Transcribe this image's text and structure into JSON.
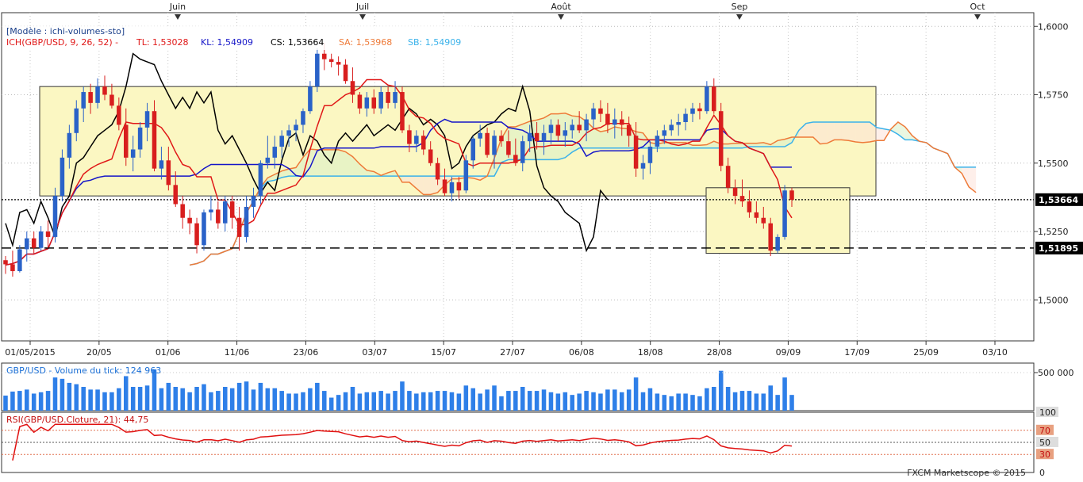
{
  "header": {
    "model_label": "[Modèle : ichi-volumes-sto]",
    "ich_label": "ICH(GBP/USD, 9, 26, 52) -",
    "tl_label": "TL: 1,53028",
    "kl_label": "KL: 1,54909",
    "cs_label": "CS: 1,53664",
    "sa_label": "SA: 1,53968",
    "sb_label": "SB: 1,54909"
  },
  "colors": {
    "up_candle": "#2a62c8",
    "down_candle": "#d81e1e",
    "tenkan": "#e01818",
    "kijun": "#1515c8",
    "chikou": "#000000",
    "senkou_a": "#ee7a38",
    "senkou_b": "#3ab2ea",
    "rectangle_fill": "#fbf7c2",
    "volume_bar": "#2e7fe8",
    "rsi_line": "#e01010"
  },
  "chart_data": [
    {
      "type": "candlestick",
      "x_ticks": [
        "01/05/2015",
        "20/05",
        "01/06",
        "11/06",
        "23/06",
        "03/07",
        "15/07",
        "27/07",
        "06/08",
        "18/08",
        "28/08",
        "09/09",
        "17/09",
        "25/09",
        "03/10"
      ],
      "months": [
        "Juin",
        "Juil",
        "Août",
        "Sep",
        "Oct"
      ],
      "y_ticks": [
        "1,6000",
        "1,5750",
        "1,5500",
        "1,5250",
        "1,5000"
      ],
      "ylim": [
        1.485,
        1.605
      ],
      "current_price_label": "1,53664",
      "current_price": 1.53664,
      "support_label": "1,51895",
      "support": 1.51895,
      "candles": [
        [
          1.5145,
          1.516,
          1.5095,
          1.513
        ],
        [
          1.513,
          1.518,
          1.5085,
          1.5105
        ],
        [
          1.5105,
          1.52,
          1.51,
          1.5185
        ],
        [
          1.5185,
          1.525,
          1.514,
          1.5225
        ],
        [
          1.5225,
          1.525,
          1.517,
          1.519
        ],
        [
          1.519,
          1.527,
          1.518,
          1.525
        ],
        [
          1.525,
          1.529,
          1.519,
          1.523
        ],
        [
          1.523,
          1.541,
          1.521,
          1.538
        ],
        [
          1.538,
          1.555,
          1.536,
          1.552
        ],
        [
          1.552,
          1.564,
          1.548,
          1.561
        ],
        [
          1.561,
          1.573,
          1.558,
          1.57
        ],
        [
          1.57,
          1.578,
          1.565,
          1.576
        ],
        [
          1.576,
          1.579,
          1.568,
          1.572
        ],
        [
          1.572,
          1.581,
          1.57,
          1.578
        ],
        [
          1.578,
          1.582,
          1.573,
          1.575
        ],
        [
          1.575,
          1.579,
          1.57,
          1.571
        ],
        [
          1.571,
          1.574,
          1.562,
          1.564
        ],
        [
          1.564,
          1.57,
          1.549,
          1.552
        ],
        [
          1.552,
          1.56,
          1.547,
          1.555
        ],
        [
          1.555,
          1.565,
          1.552,
          1.563
        ],
        [
          1.563,
          1.572,
          1.558,
          1.569
        ],
        [
          1.569,
          1.573,
          1.547,
          1.548
        ],
        [
          1.548,
          1.556,
          1.544,
          1.551
        ],
        [
          1.551,
          1.556,
          1.54,
          1.542
        ],
        [
          1.542,
          1.547,
          1.534,
          1.535
        ],
        [
          1.535,
          1.538,
          1.526,
          1.53
        ],
        [
          1.53,
          1.533,
          1.524,
          1.528
        ],
        [
          1.528,
          1.53,
          1.517,
          1.52
        ],
        [
          1.52,
          1.533,
          1.518,
          1.532
        ],
        [
          1.532,
          1.538,
          1.529,
          1.533
        ],
        [
          1.533,
          1.536,
          1.526,
          1.528
        ],
        [
          1.528,
          1.538,
          1.525,
          1.536
        ],
        [
          1.536,
          1.538,
          1.526,
          1.53
        ],
        [
          1.53,
          1.534,
          1.518,
          1.523
        ],
        [
          1.523,
          1.538,
          1.521,
          1.534
        ],
        [
          1.534,
          1.541,
          1.53,
          1.538
        ],
        [
          1.538,
          1.551,
          1.535,
          1.55
        ],
        [
          1.55,
          1.56,
          1.548,
          1.552
        ],
        [
          1.552,
          1.56,
          1.548,
          1.556
        ],
        [
          1.556,
          1.562,
          1.552,
          1.56
        ],
        [
          1.56,
          1.564,
          1.556,
          1.562
        ],
        [
          1.562,
          1.566,
          1.558,
          1.564
        ],
        [
          1.564,
          1.57,
          1.561,
          1.569
        ],
        [
          1.569,
          1.58,
          1.568,
          1.578
        ],
        [
          1.578,
          1.592,
          1.576,
          1.59
        ],
        [
          1.59,
          1.594,
          1.584,
          1.588
        ],
        [
          1.588,
          1.59,
          1.585,
          1.587
        ],
        [
          1.587,
          1.589,
          1.582,
          1.586
        ],
        [
          1.586,
          1.588,
          1.579,
          1.58
        ],
        [
          1.58,
          1.585,
          1.572,
          1.575
        ],
        [
          1.575,
          1.576,
          1.568,
          1.57
        ],
        [
          1.57,
          1.576,
          1.567,
          1.574
        ],
        [
          1.574,
          1.577,
          1.568,
          1.57
        ],
        [
          1.57,
          1.578,
          1.568,
          1.576
        ],
        [
          1.576,
          1.578,
          1.57,
          1.572
        ],
        [
          1.572,
          1.58,
          1.57,
          1.576
        ],
        [
          1.576,
          1.578,
          1.561,
          1.562
        ],
        [
          1.562,
          1.564,
          1.554,
          1.557
        ],
        [
          1.557,
          1.562,
          1.554,
          1.56
        ],
        [
          1.56,
          1.562,
          1.553,
          1.555
        ],
        [
          1.555,
          1.558,
          1.549,
          1.55
        ],
        [
          1.55,
          1.552,
          1.542,
          1.544
        ],
        [
          1.544,
          1.548,
          1.538,
          1.539
        ],
        [
          1.539,
          1.545,
          1.536,
          1.543
        ],
        [
          1.543,
          1.545,
          1.537,
          1.54
        ],
        [
          1.54,
          1.553,
          1.539,
          1.551
        ],
        [
          1.551,
          1.56,
          1.548,
          1.559
        ],
        [
          1.559,
          1.564,
          1.556,
          1.561
        ],
        [
          1.561,
          1.563,
          1.552,
          1.553
        ],
        [
          1.553,
          1.562,
          1.548,
          1.56
        ],
        [
          1.56,
          1.562,
          1.556,
          1.558
        ],
        [
          1.558,
          1.562,
          1.552,
          1.553
        ],
        [
          1.553,
          1.559,
          1.549,
          1.55
        ],
        [
          1.55,
          1.56,
          1.547,
          1.558
        ],
        [
          1.558,
          1.564,
          1.554,
          1.561
        ],
        [
          1.561,
          1.565,
          1.555,
          1.558
        ],
        [
          1.558,
          1.564,
          1.553,
          1.561
        ],
        [
          1.561,
          1.566,
          1.557,
          1.564
        ],
        [
          1.564,
          1.566,
          1.558,
          1.56
        ],
        [
          1.56,
          1.565,
          1.556,
          1.562
        ],
        [
          1.562,
          1.566,
          1.559,
          1.564
        ],
        [
          1.564,
          1.569,
          1.561,
          1.562
        ],
        [
          1.562,
          1.568,
          1.558,
          1.566
        ],
        [
          1.566,
          1.572,
          1.563,
          1.57
        ],
        [
          1.57,
          1.573,
          1.565,
          1.568
        ],
        [
          1.568,
          1.572,
          1.561,
          1.564
        ],
        [
          1.564,
          1.57,
          1.559,
          1.566
        ],
        [
          1.566,
          1.569,
          1.56,
          1.564
        ],
        [
          1.564,
          1.567,
          1.556,
          1.56
        ],
        [
          1.56,
          1.565,
          1.545,
          1.548
        ],
        [
          1.548,
          1.553,
          1.544,
          1.55
        ],
        [
          1.55,
          1.558,
          1.546,
          1.556
        ],
        [
          1.556,
          1.562,
          1.554,
          1.56
        ],
        [
          1.56,
          1.564,
          1.557,
          1.562
        ],
        [
          1.562,
          1.566,
          1.56,
          1.564
        ],
        [
          1.564,
          1.568,
          1.56,
          1.565
        ],
        [
          1.565,
          1.57,
          1.562,
          1.568
        ],
        [
          1.568,
          1.572,
          1.565,
          1.57
        ],
        [
          1.57,
          1.572,
          1.566,
          1.569
        ],
        [
          1.569,
          1.58,
          1.568,
          1.578
        ],
        [
          1.578,
          1.581,
          1.568,
          1.569
        ],
        [
          1.569,
          1.572,
          1.547,
          1.549
        ],
        [
          1.549,
          1.552,
          1.539,
          1.541
        ],
        [
          1.541,
          1.544,
          1.535,
          1.538
        ],
        [
          1.538,
          1.544,
          1.534,
          1.536
        ],
        [
          1.536,
          1.54,
          1.53,
          1.532
        ],
        [
          1.532,
          1.536,
          1.528,
          1.53
        ],
        [
          1.53,
          1.534,
          1.526,
          1.528
        ],
        [
          1.528,
          1.53,
          1.516,
          1.518
        ],
        [
          1.518,
          1.524,
          1.517,
          1.523
        ],
        [
          1.523,
          1.542,
          1.522,
          1.54
        ],
        [
          1.54,
          1.541,
          1.534,
          1.5366
        ]
      ]
    },
    {
      "type": "bar",
      "title": "GBP/USD - Volume du tick: 124 963",
      "y_tick_label": "500 000"
    },
    {
      "type": "line",
      "title": "RSI(GBP/USD.Cloture, 21): 44,75",
      "y_ticks": [
        "100",
        "70",
        "50",
        "30",
        "0"
      ],
      "ylim": [
        0,
        100
      ],
      "levels": [
        70,
        50,
        30
      ]
    }
  ],
  "footer": {
    "credit": "FXCM Marketscope © 2015"
  }
}
